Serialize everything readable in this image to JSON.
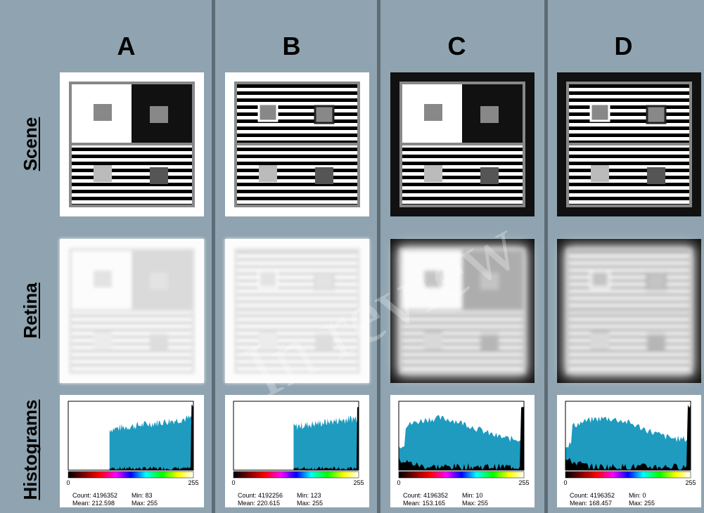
{
  "columns": [
    {
      "label": "A",
      "stats": {
        "count": "Count: 4196352",
        "min": "Min: 83",
        "mean": "Mean: 212.598",
        "max": "Max: 255"
      }
    },
    {
      "label": "B",
      "stats": {
        "count": "Count: 4192256",
        "min": "Min: 123",
        "mean": "Mean: 220.615",
        "max": "Max: 255"
      }
    },
    {
      "label": "C",
      "stats": {
        "count": "Count: 4196352",
        "min": "Min: 10",
        "mean": "Mean: 153.165",
        "max": "Max: 255"
      }
    },
    {
      "label": "D",
      "stats": {
        "count": "Count: 4196352",
        "min": "Min: 0",
        "mean": "Mean: 168.457",
        "max": "Max: 255"
      }
    }
  ],
  "rows": [
    "Scene",
    "Retina",
    "Histograms"
  ],
  "histogram_axis": {
    "min": "0",
    "max": "255"
  },
  "watermark": "In review"
}
